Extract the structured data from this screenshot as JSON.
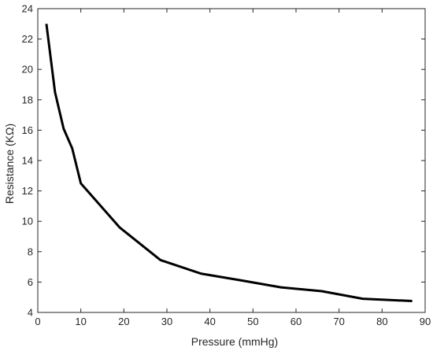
{
  "chart_data": {
    "type": "line",
    "title": "",
    "xlabel": "Pressure (mmHg)",
    "ylabel": "Resistance (KΩ)",
    "xlim": [
      0,
      90
    ],
    "ylim": [
      4,
      24
    ],
    "xticks": [
      0,
      10,
      20,
      30,
      40,
      50,
      60,
      70,
      80,
      90
    ],
    "yticks": [
      4,
      6,
      8,
      10,
      12,
      14,
      16,
      18,
      20,
      22,
      24
    ],
    "grid": false,
    "legend": "none",
    "series": [
      {
        "color": "#000000",
        "x": [
          2,
          4,
          6,
          8,
          10,
          19,
          28.5,
          38,
          47.5,
          56.5,
          66,
          75.5,
          87
        ],
        "y": [
          23.0,
          18.5,
          16.1,
          14.8,
          12.5,
          9.6,
          7.45,
          6.55,
          6.1,
          5.65,
          5.4,
          4.9,
          4.75
        ]
      }
    ]
  }
}
